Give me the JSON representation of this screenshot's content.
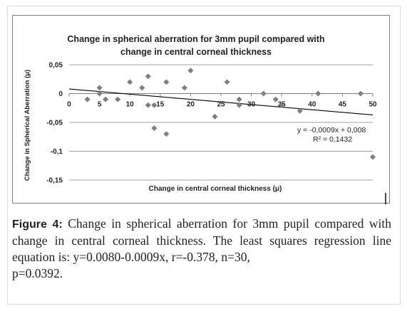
{
  "chart_data": {
    "type": "scatter",
    "title_lines": [
      "Change in spherical aberration for 3mm pupil compared with",
      "change in central corneal thickness"
    ],
    "xlabel": "Change in central corneal thickness (μ)",
    "ylabel": "Change in Spherical Aberration (μ)",
    "xlim": [
      0,
      50
    ],
    "ylim": [
      -0.15,
      0.05
    ],
    "x_ticks": [
      "0",
      "5",
      "10",
      "15",
      "20",
      "25",
      "30",
      "35",
      "40",
      "45",
      "50"
    ],
    "y_ticks": [
      "0,05",
      "0",
      "-0,05",
      "-0,1",
      "-0,15"
    ],
    "points": [
      {
        "x": 3,
        "y": -0.01
      },
      {
        "x": 5,
        "y": 0.01
      },
      {
        "x": 5,
        "y": 0
      },
      {
        "x": 6,
        "y": -0.01
      },
      {
        "x": 8,
        "y": -0.01
      },
      {
        "x": 10,
        "y": 0.02
      },
      {
        "x": 12,
        "y": 0.01
      },
      {
        "x": 13,
        "y": 0.03
      },
      {
        "x": 13,
        "y": -0.02
      },
      {
        "x": 14,
        "y": -0.02
      },
      {
        "x": 14,
        "y": -0.06
      },
      {
        "x": 16,
        "y": 0.02
      },
      {
        "x": 16,
        "y": -0.07
      },
      {
        "x": 19,
        "y": 0.01
      },
      {
        "x": 20,
        "y": 0.04
      },
      {
        "x": 24,
        "y": -0.04
      },
      {
        "x": 26,
        "y": 0.02
      },
      {
        "x": 28,
        "y": -0.01
      },
      {
        "x": 28,
        "y": -0.02
      },
      {
        "x": 32,
        "y": 0
      },
      {
        "x": 34,
        "y": -0.01
      },
      {
        "x": 35,
        "y": -0.02
      },
      {
        "x": 38,
        "y": -0.03
      },
      {
        "x": 41,
        "y": 0
      },
      {
        "x": 48,
        "y": 0
      },
      {
        "x": 50,
        "y": -0.11
      }
    ],
    "trendline": {
      "slope": -0.0009,
      "intercept": 0.008,
      "x_range": [
        0,
        50
      ]
    },
    "equation_label": "y = -0,0009x + 0,008",
    "r2_label": "R² = 0,1432",
    "colors": {
      "marker": "#7f7f7f",
      "trendline": "#000000",
      "grid": "#a6a6a6"
    }
  },
  "caption": {
    "label": "Figure 4:",
    "text": "Change in spherical aberration for 3mm pupil compared with change in central corneal thickness. The least squares regression line equation is: y=0.0080-0.0009x, r=-0.378, n=30,",
    "last_line": "p=0.0392."
  }
}
